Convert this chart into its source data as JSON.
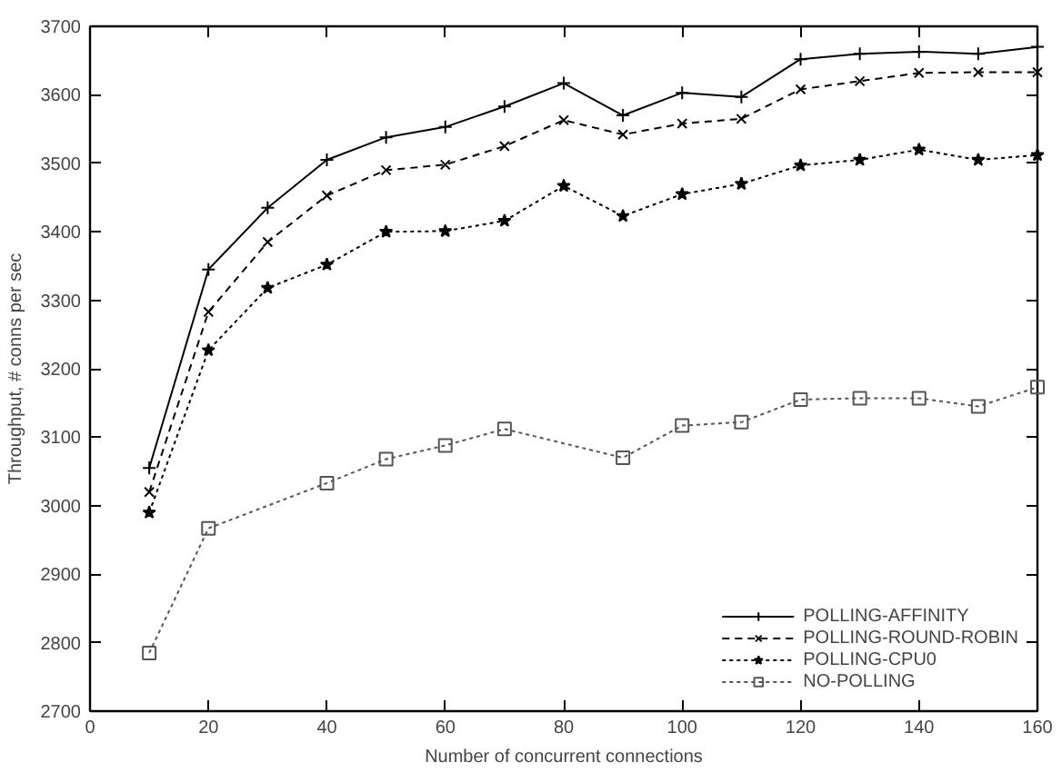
{
  "chart_data": {
    "type": "line",
    "xlabel": "Number of concurrent connections",
    "ylabel": "Throughput, # conns per sec",
    "xlim": [
      0,
      160
    ],
    "ylim": [
      2700,
      3700
    ],
    "xticks": [
      0,
      20,
      40,
      60,
      80,
      100,
      120,
      140,
      160
    ],
    "yticks": [
      2700,
      2800,
      2900,
      3000,
      3100,
      3200,
      3300,
      3400,
      3500,
      3600,
      3700
    ],
    "grid": false,
    "legend": "bottom right",
    "series": [
      {
        "name": "POLLING-AFFINITY",
        "color": "#000000",
        "marker": "cross",
        "line_style": "solid",
        "x": [
          10,
          20,
          30,
          40,
          50,
          60,
          70,
          80,
          90,
          100,
          110,
          120,
          130,
          140,
          150,
          160
        ],
        "values": [
          3055,
          3345,
          3435,
          3505,
          3538,
          3553,
          3583,
          3617,
          3570,
          3603,
          3597,
          3652,
          3660,
          3663,
          3660,
          3670
        ]
      },
      {
        "name": "POLLING-ROUND-ROBIN",
        "color": "#000000",
        "marker": "x",
        "line_style": "dashed",
        "x": [
          10,
          20,
          30,
          40,
          50,
          60,
          70,
          80,
          90,
          100,
          110,
          120,
          130,
          140,
          150,
          160
        ],
        "values": [
          3020,
          3283,
          3385,
          3453,
          3490,
          3498,
          3525,
          3563,
          3542,
          3558,
          3565,
          3608,
          3620,
          3632,
          3633,
          3633
        ]
      },
      {
        "name": "POLLING-CPU0",
        "color": "#000000",
        "marker": "star",
        "line_style": "dotted",
        "x": [
          10,
          20,
          30,
          40,
          50,
          60,
          70,
          80,
          90,
          100,
          110,
          120,
          130,
          140,
          150,
          160
        ],
        "values": [
          2990,
          3227,
          3318,
          3352,
          3400,
          3401,
          3416,
          3467,
          3423,
          3455,
          3470,
          3497,
          3505,
          3520,
          3505,
          3512
        ]
      },
      {
        "name": "NO-POLLING",
        "color": "#555555",
        "marker": "square",
        "line_style": "dotted",
        "x": [
          10,
          20,
          40,
          50,
          60,
          70,
          90,
          100,
          110,
          120,
          130,
          140,
          150,
          160
        ],
        "values": [
          2785,
          2967,
          3033,
          3068,
          3088,
          3112,
          3070,
          3117,
          3122,
          3155,
          3157,
          3157,
          3145,
          3173
        ]
      }
    ]
  }
}
